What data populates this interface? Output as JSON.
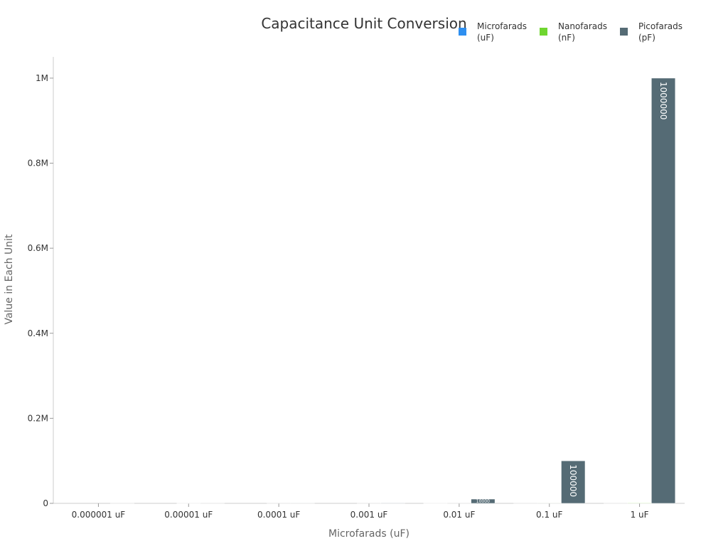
{
  "chart_data": {
    "type": "bar",
    "title": "Capacitance Unit Conversion",
    "xlabel": "Microfarads (uF)",
    "ylabel": "Value in Each Unit",
    "ylim": [
      0,
      1050000
    ],
    "yticks": [
      {
        "value": 0,
        "label": "0"
      },
      {
        "value": 200000,
        "label": "0.2M"
      },
      {
        "value": 400000,
        "label": "0.4M"
      },
      {
        "value": 600000,
        "label": "0.6M"
      },
      {
        "value": 800000,
        "label": "0.8M"
      },
      {
        "value": 1000000,
        "label": "1M"
      }
    ],
    "categories": [
      "0.000001 uF",
      "0.00001 uF",
      "0.0001 uF",
      "0.001 uF",
      "0.01 uF",
      "0.1 uF",
      "1 uF"
    ],
    "series": [
      {
        "name": "Microfarads (uF)",
        "legend_lines": [
          "Microfarads",
          "(uF)"
        ],
        "color": "#2e8ff0",
        "values": [
          1e-06,
          1e-05,
          0.0001,
          0.001,
          0.01,
          0.1,
          1
        ]
      },
      {
        "name": "Nanofarads (nF)",
        "legend_lines": [
          "Nanofarads",
          "(nF)"
        ],
        "color": "#6fd630",
        "values": [
          0.001,
          0.01,
          0.1,
          1,
          10,
          100,
          1000
        ]
      },
      {
        "name": "Picofarads (pF)",
        "legend_lines": [
          "Picofarads",
          "(pF)"
        ],
        "color": "#556b75",
        "values": [
          1,
          10,
          100,
          1000,
          10000,
          100000,
          1000000
        ]
      }
    ],
    "data_labels": [
      {
        "series": 2,
        "index": 4,
        "text": "10000"
      },
      {
        "series": 2,
        "index": 5,
        "text": "100000"
      },
      {
        "series": 2,
        "index": 6,
        "text": "1000000"
      }
    ],
    "legend_position": "top-right",
    "grid": false
  }
}
